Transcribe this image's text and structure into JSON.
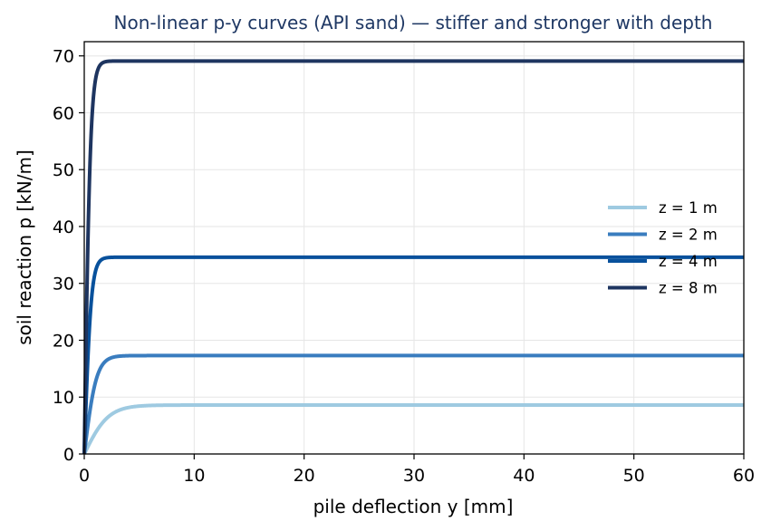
{
  "chart_data": {
    "type": "line",
    "title": "Non-linear p-y curves (API sand) — stiffer and stronger with depth",
    "xlabel": "pile deflection  y  [mm]",
    "ylabel": "soil reaction  p  [kN/m]",
    "xlim": [
      0,
      60
    ],
    "ylim": [
      0,
      72.5
    ],
    "xticks": [
      0,
      10,
      20,
      30,
      40,
      50,
      60
    ],
    "yticks": [
      0,
      10,
      20,
      30,
      40,
      50,
      60,
      70
    ],
    "grid": true,
    "legend_position": "center-right",
    "series": [
      {
        "name": "z = 1 m",
        "color": "#9ecae1",
        "pu": 8.6,
        "y_char": 2.2
      },
      {
        "name": "z = 2 m",
        "color": "#3a7dbf",
        "pu": 17.3,
        "y_char": 1.1
      },
      {
        "name": "z = 4 m",
        "color": "#08519c",
        "pu": 34.6,
        "y_char": 0.62
      },
      {
        "name": "z = 8 m",
        "color": "#1e3560",
        "pu": 69.1,
        "y_char": 0.55
      }
    ]
  }
}
